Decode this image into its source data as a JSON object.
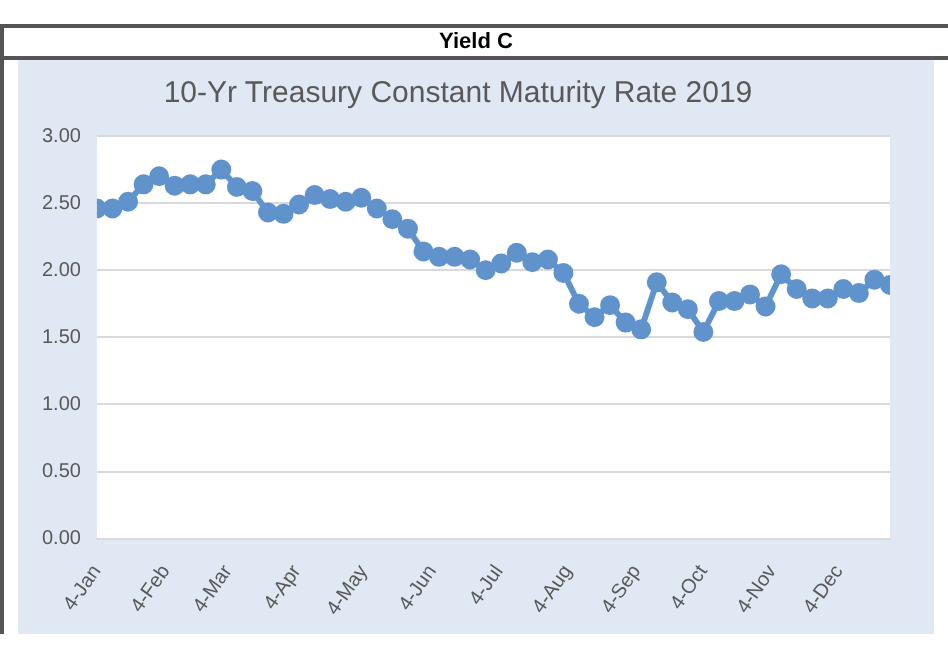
{
  "chart_data": {
    "type": "line",
    "title": "10-Yr Treasury Constant Maturity Rate 2019",
    "annotations": [
      "Yield C"
    ],
    "x": [
      "2019-01-04",
      "2019-01-11",
      "2019-01-18",
      "2019-01-25",
      "2019-02-01",
      "2019-02-08",
      "2019-02-15",
      "2019-02-22",
      "2019-03-01",
      "2019-03-08",
      "2019-03-15",
      "2019-03-22",
      "2019-03-29",
      "2019-04-05",
      "2019-04-12",
      "2019-04-19",
      "2019-04-26",
      "2019-05-03",
      "2019-05-10",
      "2019-05-17",
      "2019-05-24",
      "2019-05-31",
      "2019-06-07",
      "2019-06-14",
      "2019-06-21",
      "2019-06-28",
      "2019-07-05",
      "2019-07-12",
      "2019-07-19",
      "2019-07-26",
      "2019-08-02",
      "2019-08-09",
      "2019-08-16",
      "2019-08-23",
      "2019-08-30",
      "2019-09-06",
      "2019-09-13",
      "2019-09-20",
      "2019-09-27",
      "2019-10-04",
      "2019-10-11",
      "2019-10-18",
      "2019-10-25",
      "2019-11-01",
      "2019-11-08",
      "2019-11-15",
      "2019-11-22",
      "2019-11-29",
      "2019-12-06",
      "2019-12-13",
      "2019-12-20",
      "2019-12-27"
    ],
    "series": [
      {
        "color": "#6093cc",
        "values": [
          2.46,
          2.46,
          2.51,
          2.64,
          2.7,
          2.63,
          2.64,
          2.64,
          2.75,
          2.62,
          2.59,
          2.43,
          2.42,
          2.49,
          2.56,
          2.53,
          2.51,
          2.54,
          2.46,
          2.38,
          2.31,
          2.14,
          2.1,
          2.1,
          2.08,
          2.0,
          2.05,
          2.13,
          2.06,
          2.08,
          1.98,
          1.75,
          1.65,
          1.74,
          1.61,
          1.56,
          1.91,
          1.76,
          1.71,
          1.54,
          1.77,
          1.77,
          1.82,
          1.73,
          1.97,
          1.86,
          1.79,
          1.79,
          1.86,
          1.83,
          1.93,
          1.89
        ]
      }
    ],
    "xlim": [
      "2019-01-04",
      "2019-12-27"
    ],
    "xticks": [
      {
        "value": "2019-01-04",
        "label": "4-Jan"
      },
      {
        "value": "2019-02-04",
        "label": "4-Feb"
      },
      {
        "value": "2019-03-04",
        "label": "4-Mar"
      },
      {
        "value": "2019-04-04",
        "label": "4-Apr"
      },
      {
        "value": "2019-05-04",
        "label": "4-May"
      },
      {
        "value": "2019-06-04",
        "label": "4-Jun"
      },
      {
        "value": "2019-07-04",
        "label": "4-Jul"
      },
      {
        "value": "2019-08-04",
        "label": "4-Aug"
      },
      {
        "value": "2019-09-04",
        "label": "4-Sep"
      },
      {
        "value": "2019-10-04",
        "label": "4-Oct"
      },
      {
        "value": "2019-11-04",
        "label": "4-Nov"
      },
      {
        "value": "2019-12-04",
        "label": "4-Dec"
      }
    ],
    "ylim": [
      0,
      3
    ],
    "yticks": [
      {
        "value": 0,
        "label": "0.00"
      },
      {
        "value": 0.5,
        "label": "0.50"
      },
      {
        "value": 1,
        "label": "1.00"
      },
      {
        "value": 1.5,
        "label": "1.50"
      },
      {
        "value": 2,
        "label": "2.00"
      },
      {
        "value": 2.5,
        "label": "2.50"
      },
      {
        "value": 3,
        "label": "3.00"
      }
    ],
    "grid": "y",
    "legend": false,
    "marker": "circle",
    "line_style": "solid"
  }
}
